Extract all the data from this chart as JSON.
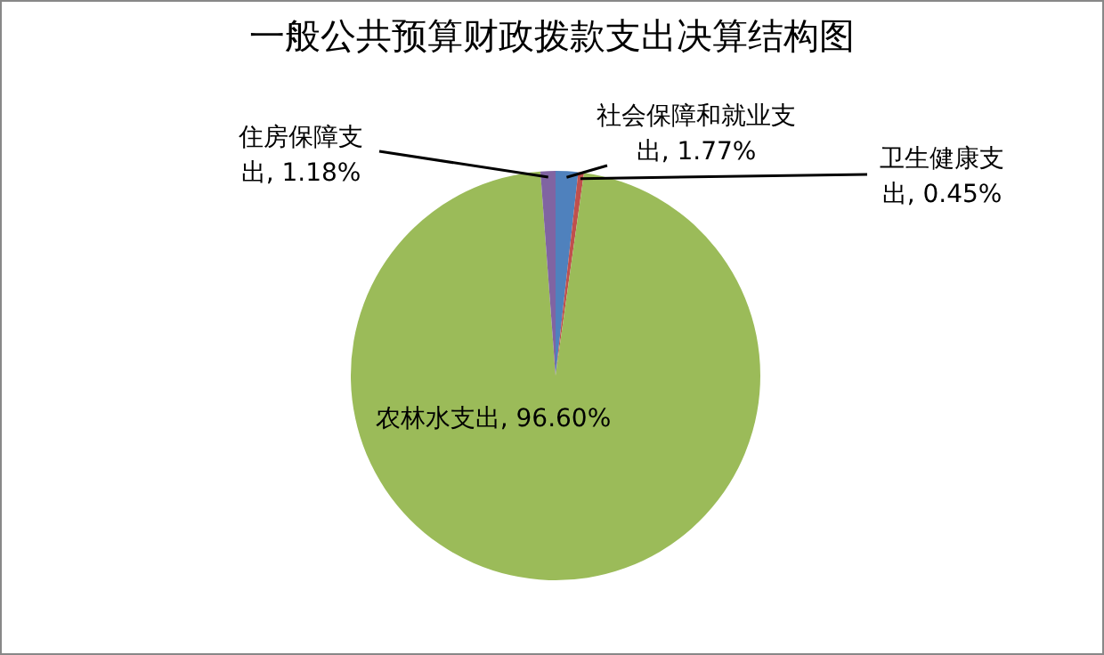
{
  "chart_data": {
    "type": "pie",
    "title": "一般公共预算财政拨款支出决算结构图",
    "categories": [
      "社会保障和就业支出",
      "卫生健康支出",
      "农林水支出",
      "住房保障支出"
    ],
    "values": [
      1.77,
      0.45,
      96.6,
      1.18
    ],
    "colors": [
      "#4f81bd",
      "#c0504d",
      "#9bbb59",
      "#8064a2"
    ],
    "value_labels": [
      "1.77%",
      "0.45%",
      "96.60%",
      "1.18%"
    ],
    "legend": false
  }
}
